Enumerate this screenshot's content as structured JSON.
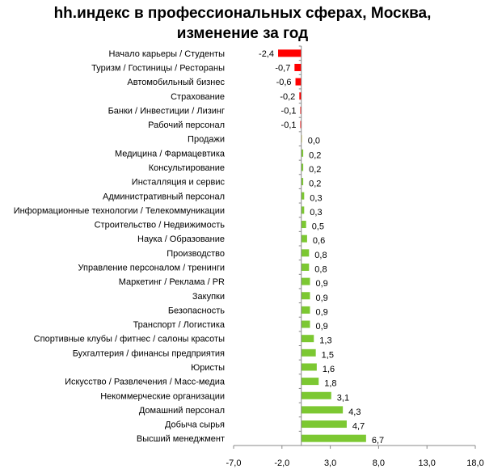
{
  "chart_data": {
    "type": "bar",
    "orientation": "horizontal",
    "title": "hh.индекс в профессиональных сферах, Москва, изменение за год",
    "title_lines": [
      "hh.индекс в профессиональных сферах, Москва,",
      "изменение за год"
    ],
    "categories": [
      "Начало карьеры / Студенты",
      "Туризм / Гостиницы / Рестораны",
      "Автомобильный бизнес",
      "Страхование",
      "Банки / Инвестиции / Лизинг",
      "Рабочий персонал",
      "Продажи",
      "Медицина / Фармацевтика",
      "Консультирование",
      "Инсталляция и сервис",
      "Административный персонал",
      "Информационные технологии / Телекоммуникации",
      "Строительство / Недвижимость",
      "Наука / Образование",
      "Производство",
      "Управление персоналом / тренинги",
      "Маркетинг / Реклама / PR",
      "Закупки",
      "Безопасность",
      "Транспорт / Логистика",
      "Спортивные клубы / фитнес / салоны красоты",
      "Бухгалтерия / финансы предприятия",
      "Юристы",
      "Искусство / Развлечения / Масс-медиа",
      "Некоммерческие организации",
      "Домашний персонал",
      "Добыча сырья",
      "Высший менеджмент"
    ],
    "values": [
      -2.4,
      -0.7,
      -0.6,
      -0.2,
      -0.1,
      -0.1,
      0.0,
      0.2,
      0.2,
      0.2,
      0.3,
      0.3,
      0.5,
      0.6,
      0.8,
      0.8,
      0.9,
      0.9,
      0.9,
      0.9,
      1.3,
      1.5,
      1.6,
      1.8,
      3.1,
      4.3,
      4.7,
      6.7
    ],
    "value_labels": [
      "-2,4",
      "-0,7",
      "-0,6",
      "-0,2",
      "-0,1",
      "-0,1",
      "0,0",
      "0,2",
      "0,2",
      "0,2",
      "0,3",
      "0,3",
      "0,5",
      "0,6",
      "0,8",
      "0,8",
      "0,9",
      "0,9",
      "0,9",
      "0,9",
      "1,3",
      "1,5",
      "1,6",
      "1,8",
      "3,1",
      "4,3",
      "4,7",
      "6,7"
    ],
    "xlim": [
      -7,
      18
    ],
    "xticks": [
      -7,
      -2,
      3,
      8,
      13,
      18
    ],
    "xtick_labels": [
      "-7,0",
      "-2,0",
      "3,0",
      "8,0",
      "13,0",
      "18,0"
    ],
    "xlabel": "",
    "ylabel": "",
    "grid": false,
    "colors": {
      "negative": "#ff0000",
      "positive": "#7cc832",
      "zero": "#e8e060",
      "axis": "#888888"
    }
  }
}
